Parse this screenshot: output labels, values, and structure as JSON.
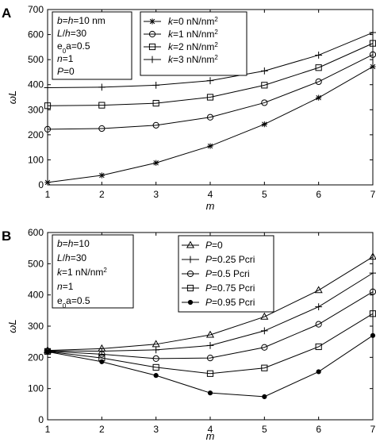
{
  "chart_data": [
    {
      "type": "line",
      "panel_label": "A",
      "xlabel": "m",
      "ylabel": "ωL",
      "xlim": [
        1,
        7
      ],
      "ylim": [
        0,
        700
      ],
      "x_ticks": [
        "1",
        "2",
        "3",
        "4",
        "5",
        "6",
        "7"
      ],
      "y_ticks": [
        "0",
        "100",
        "200",
        "300",
        "400",
        "500",
        "600",
        "700"
      ],
      "x": [
        1,
        2,
        3,
        4,
        5,
        6,
        7
      ],
      "grid": false,
      "legend_position": "top-center",
      "params_box": [
        [
          {
            "t": "b",
            "i": true
          },
          {
            "t": "="
          },
          {
            "t": "h",
            "i": true
          },
          {
            "t": "=10 nm"
          }
        ],
        [
          {
            "t": "L",
            "i": true
          },
          {
            "t": "/"
          },
          {
            "t": "h",
            "i": true
          },
          {
            "t": "=30"
          }
        ],
        [
          {
            "t": "e"
          },
          {
            "t": "0",
            "sub": true
          },
          {
            "t": "a=0.5"
          }
        ],
        [
          {
            "t": "n",
            "i": true
          },
          {
            "t": "=1"
          }
        ],
        [
          {
            "t": "P",
            "i": true
          },
          {
            "t": "=0"
          }
        ]
      ],
      "series": [
        {
          "name": "k=0 nN/nm2",
          "label_parts": [
            {
              "t": "k",
              "i": true
            },
            {
              "t": "=0 nN/nm"
            },
            {
              "t": "2",
              "sup": true
            }
          ],
          "marker": "asterisk",
          "values": [
            10,
            38,
            88,
            155,
            242,
            348,
            472
          ]
        },
        {
          "name": "k=1 nN/nm2",
          "label_parts": [
            {
              "t": "k",
              "i": true
            },
            {
              "t": "=1 nN/nm"
            },
            {
              "t": "2",
              "sup": true
            }
          ],
          "marker": "circle",
          "values": [
            222,
            225,
            238,
            270,
            328,
            412,
            520
          ]
        },
        {
          "name": "k=2 nN/nm2",
          "label_parts": [
            {
              "t": "k",
              "i": true
            },
            {
              "t": "=2 nN/nm"
            },
            {
              "t": "2",
              "sup": true
            }
          ],
          "marker": "square",
          "values": [
            316,
            318,
            326,
            350,
            398,
            468,
            565
          ]
        },
        {
          "name": "k=3 nN/nm2",
          "label_parts": [
            {
              "t": "k",
              "i": true
            },
            {
              "t": "=3 nN/nm"
            },
            {
              "t": "2",
              "sup": true
            }
          ],
          "marker": "plus",
          "values": [
            388,
            390,
            398,
            416,
            455,
            518,
            608
          ]
        }
      ]
    },
    {
      "type": "line",
      "panel_label": "B",
      "xlabel": "m",
      "ylabel": "ωL",
      "xlim": [
        1,
        7
      ],
      "ylim": [
        0,
        600
      ],
      "x_ticks": [
        "1",
        "2",
        "3",
        "4",
        "5",
        "6",
        "7"
      ],
      "y_ticks": [
        "0",
        "100",
        "200",
        "300",
        "400",
        "500",
        "600"
      ],
      "x": [
        1,
        2,
        3,
        4,
        5,
        6,
        7
      ],
      "grid": false,
      "legend_position": "right",
      "params_box": [
        [
          {
            "t": "b",
            "i": true
          },
          {
            "t": "="
          },
          {
            "t": "h",
            "i": true
          },
          {
            "t": "=10"
          }
        ],
        [
          {
            "t": "L",
            "i": true
          },
          {
            "t": "/"
          },
          {
            "t": "h",
            "i": true
          },
          {
            "t": "=30"
          }
        ],
        [
          {
            "t": "k",
            "i": true
          },
          {
            "t": "=1 nN/nm"
          },
          {
            "t": "2",
            "sup": true
          }
        ],
        [
          {
            "t": "n",
            "i": true
          },
          {
            "t": "=1"
          }
        ],
        [
          {
            "t": "e"
          },
          {
            "t": "0",
            "sub": true
          },
          {
            "t": "a=0.5"
          }
        ]
      ],
      "series": [
        {
          "name": "P=0",
          "label_parts": [
            {
              "t": "P",
              "i": true
            },
            {
              "t": "=0"
            }
          ],
          "marker": "triangle",
          "values": [
            222,
            228,
            242,
            272,
            330,
            415,
            522
          ]
        },
        {
          "name": "P=0.25 Pcri",
          "label_parts": [
            {
              "t": "P",
              "i": true
            },
            {
              "t": "=0.25 Pcri"
            }
          ],
          "marker": "plus",
          "values": [
            221,
            220,
            224,
            238,
            285,
            362,
            470
          ]
        },
        {
          "name": "P=0.5 Pcri",
          "label_parts": [
            {
              "t": "P",
              "i": true
            },
            {
              "t": "=0.5 Pcri"
            }
          ],
          "marker": "circle",
          "values": [
            220,
            210,
            196,
            198,
            232,
            306,
            410
          ]
        },
        {
          "name": "P=0.75 Pcri",
          "label_parts": [
            {
              "t": "P",
              "i": true
            },
            {
              "t": "=0.75 Pcri"
            }
          ],
          "marker": "square",
          "values": [
            219,
            198,
            168,
            148,
            166,
            234,
            340
          ]
        },
        {
          "name": "P=0.95 Pcri",
          "label_parts": [
            {
              "t": "P",
              "i": true
            },
            {
              "t": "=0.95 Pcri"
            }
          ],
          "marker": "dot",
          "values": [
            218,
            186,
            142,
            86,
            74,
            154,
            270
          ]
        }
      ]
    }
  ]
}
